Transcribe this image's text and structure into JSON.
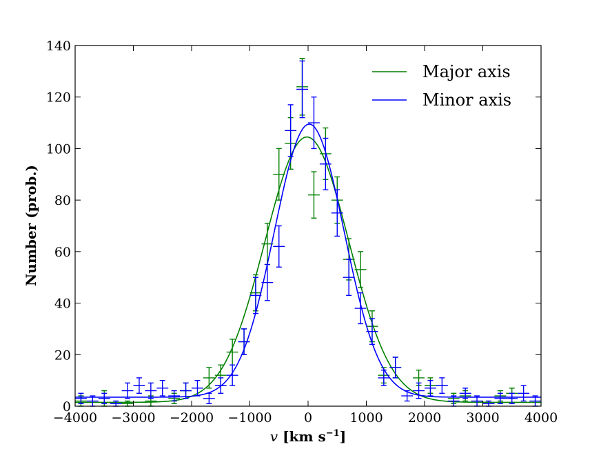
{
  "chart_data": {
    "type": "line",
    "title": "",
    "xlabel_italic": "v",
    "xlabel_rest": " [km s",
    "xlabel_sup": "−1",
    "xlabel_end": "]",
    "ylabel": "Number (prob.)",
    "xlim": [
      -4000,
      4000
    ],
    "ylim": [
      0,
      140
    ],
    "xticks": [
      -4000,
      -3000,
      -2000,
      -1000,
      0,
      1000,
      2000,
      3000,
      4000
    ],
    "yticks": [
      0,
      20,
      40,
      60,
      80,
      100,
      120,
      140
    ],
    "xtick_labels": [
      "−4000",
      "−3000",
      "−2000",
      "−1000",
      "0",
      "1000",
      "2000",
      "3000",
      "4000"
    ],
    "ytick_labels": [
      "0",
      "20",
      "40",
      "60",
      "80",
      "100",
      "120",
      "140"
    ],
    "legend_location": "top-right",
    "series": [
      {
        "name": "Major axis",
        "color": "#007f00",
        "fit": {
          "amplitude": 103,
          "mean": -20,
          "sigma": 720,
          "baseline": 1.5
        },
        "xerr": 100,
        "points": [
          {
            "x": -3900,
            "y": 2,
            "yerr": 2
          },
          {
            "x": -3500,
            "y": 3,
            "yerr": 3
          },
          {
            "x": -3100,
            "y": 1,
            "yerr": 1
          },
          {
            "x": -2700,
            "y": 2,
            "yerr": 2
          },
          {
            "x": -2300,
            "y": 3,
            "yerr": 2
          },
          {
            "x": -2100,
            "y": 6,
            "yerr": 3
          },
          {
            "x": -1700,
            "y": 11,
            "yerr": 4
          },
          {
            "x": -1500,
            "y": 12,
            "yerr": 4
          },
          {
            "x": -1300,
            "y": 21,
            "yerr": 5
          },
          {
            "x": -1100,
            "y": 25,
            "yerr": 5
          },
          {
            "x": -900,
            "y": 44,
            "yerr": 7
          },
          {
            "x": -700,
            "y": 63,
            "yerr": 8
          },
          {
            "x": -500,
            "y": 90,
            "yerr": 10
          },
          {
            "x": -300,
            "y": 102,
            "yerr": 10
          },
          {
            "x": -100,
            "y": 124,
            "yerr": 11
          },
          {
            "x": 100,
            "y": 82,
            "yerr": 9
          },
          {
            "x": 300,
            "y": 98,
            "yerr": 10
          },
          {
            "x": 500,
            "y": 80,
            "yerr": 9
          },
          {
            "x": 700,
            "y": 57,
            "yerr": 8
          },
          {
            "x": 900,
            "y": 53,
            "yerr": 7
          },
          {
            "x": 1100,
            "y": 31,
            "yerr": 6
          },
          {
            "x": 1300,
            "y": 12,
            "yerr": 3
          },
          {
            "x": 1500,
            "y": 15,
            "yerr": 4
          },
          {
            "x": 1900,
            "y": 11,
            "yerr": 3
          },
          {
            "x": 2100,
            "y": 8,
            "yerr": 3
          },
          {
            "x": 2500,
            "y": 3,
            "yerr": 2
          },
          {
            "x": 2700,
            "y": 4,
            "yerr": 2
          },
          {
            "x": 3300,
            "y": 4,
            "yerr": 2
          },
          {
            "x": 3500,
            "y": 5,
            "yerr": 2
          }
        ]
      },
      {
        "name": "Minor axis",
        "color": "#0000ff",
        "fit": {
          "amplitude": 106,
          "mean": 20,
          "sigma": 600,
          "baseline": 3.5
        },
        "xerr": 100,
        "points": [
          {
            "x": -3900,
            "y": 3,
            "yerr": 2
          },
          {
            "x": -3700,
            "y": 2,
            "yerr": 2
          },
          {
            "x": -3500,
            "y": 3,
            "yerr": 2
          },
          {
            "x": -3300,
            "y": 1,
            "yerr": 1
          },
          {
            "x": -3100,
            "y": 6,
            "yerr": 3
          },
          {
            "x": -2900,
            "y": 8,
            "yerr": 3
          },
          {
            "x": -2700,
            "y": 6,
            "yerr": 3
          },
          {
            "x": -2500,
            "y": 7,
            "yerr": 3
          },
          {
            "x": -2300,
            "y": 4,
            "yerr": 2
          },
          {
            "x": -2100,
            "y": 6,
            "yerr": 3
          },
          {
            "x": -1900,
            "y": 7,
            "yerr": 3
          },
          {
            "x": -1700,
            "y": 3,
            "yerr": 2
          },
          {
            "x": -1500,
            "y": 8,
            "yerr": 3
          },
          {
            "x": -1300,
            "y": 12,
            "yerr": 4
          },
          {
            "x": -1100,
            "y": 25,
            "yerr": 5
          },
          {
            "x": -900,
            "y": 43,
            "yerr": 7
          },
          {
            "x": -700,
            "y": 48,
            "yerr": 7
          },
          {
            "x": -500,
            "y": 62,
            "yerr": 8
          },
          {
            "x": -300,
            "y": 107,
            "yerr": 10
          },
          {
            "x": -100,
            "y": 123,
            "yerr": 11
          },
          {
            "x": 100,
            "y": 110,
            "yerr": 10
          },
          {
            "x": 300,
            "y": 94,
            "yerr": 10
          },
          {
            "x": 500,
            "y": 75,
            "yerr": 9
          },
          {
            "x": 700,
            "y": 50,
            "yerr": 7
          },
          {
            "x": 900,
            "y": 38,
            "yerr": 6
          },
          {
            "x": 1100,
            "y": 29,
            "yerr": 5
          },
          {
            "x": 1300,
            "y": 11,
            "yerr": 3
          },
          {
            "x": 1500,
            "y": 15,
            "yerr": 4
          },
          {
            "x": 1700,
            "y": 4,
            "yerr": 2
          },
          {
            "x": 1900,
            "y": 6,
            "yerr": 3
          },
          {
            "x": 2100,
            "y": 7,
            "yerr": 3
          },
          {
            "x": 2300,
            "y": 8,
            "yerr": 3
          },
          {
            "x": 2500,
            "y": 2,
            "yerr": 2
          },
          {
            "x": 2700,
            "y": 5,
            "yerr": 2
          },
          {
            "x": 2900,
            "y": 2,
            "yerr": 2
          },
          {
            "x": 3100,
            "y": 1,
            "yerr": 1
          },
          {
            "x": 3300,
            "y": 3,
            "yerr": 2
          },
          {
            "x": 3500,
            "y": 3,
            "yerr": 2
          },
          {
            "x": 3700,
            "y": 5,
            "yerr": 3
          },
          {
            "x": 3900,
            "y": 2,
            "yerr": 2
          }
        ]
      }
    ]
  }
}
